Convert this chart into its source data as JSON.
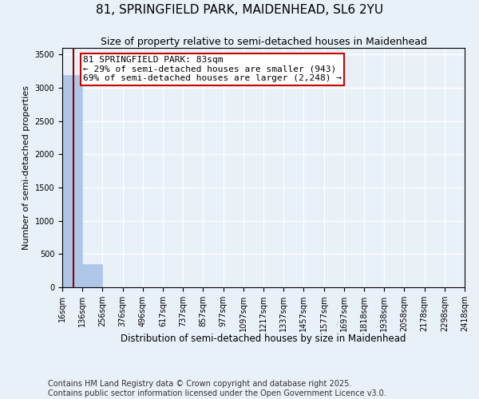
{
  "title": "81, SPRINGFIELD PARK, MAIDENHEAD, SL6 2YU",
  "subtitle": "Size of property relative to semi-detached houses in Maidenhead",
  "xlabel": "Distribution of semi-detached houses by size in Maidenhead",
  "ylabel": "Number of semi-detached properties",
  "bin_edges": [
    16,
    136,
    256,
    376,
    496,
    617,
    737,
    857,
    977,
    1097,
    1217,
    1337,
    1457,
    1577,
    1697,
    1818,
    1938,
    2058,
    2178,
    2298,
    2418
  ],
  "bin_heights": [
    3191,
    350,
    0,
    0,
    0,
    0,
    0,
    0,
    0,
    0,
    0,
    0,
    0,
    0,
    0,
    0,
    0,
    0,
    0,
    0
  ],
  "bar_color": "#aec6e8",
  "bar_edgecolor": "#aec6e8",
  "property_size": 83,
  "property_line_color": "#8b0000",
  "ylim": [
    0,
    3600
  ],
  "yticks": [
    0,
    500,
    1000,
    1500,
    2000,
    2500,
    3000,
    3500
  ],
  "annotation_text": "81 SPRINGFIELD PARK: 83sqm\n← 29% of semi-detached houses are smaller (943)\n69% of semi-detached houses are larger (2,248) →",
  "annotation_box_color": "#ffffff",
  "annotation_box_edgecolor": "#cc0000",
  "footnote": "Contains HM Land Registry data © Crown copyright and database right 2025.\nContains public sector information licensed under the Open Government Licence v3.0.",
  "background_color": "#e8f0f8",
  "plot_bg_color": "#e8f0f8",
  "grid_color": "#ffffff",
  "title_fontsize": 11,
  "subtitle_fontsize": 9,
  "footnote_fontsize": 7,
  "tick_fontsize": 7,
  "ylabel_fontsize": 8,
  "xlabel_fontsize": 8.5,
  "annotation_fontsize": 8
}
